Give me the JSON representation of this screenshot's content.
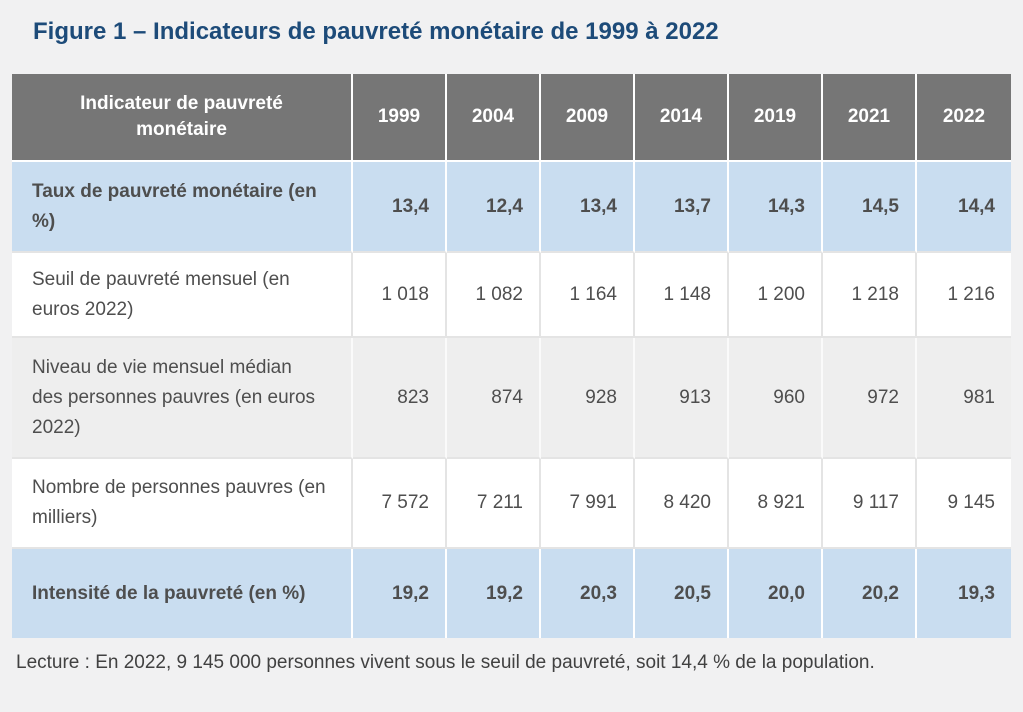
{
  "title": "Figure 1 – Indicateurs de pauvreté monétaire de 1999 à 2022",
  "table": {
    "header_label": "Indicateur de pauvreté monétaire",
    "years": [
      "1999",
      "2004",
      "2009",
      "2014",
      "2019",
      "2021",
      "2022"
    ],
    "rows": [
      {
        "label": "Taux de pauvreté monétaire (en %)",
        "style": "highlight",
        "values": [
          "13,4",
          "12,4",
          "13,4",
          "13,7",
          "14,3",
          "14,5",
          "14,4"
        ]
      },
      {
        "label": "Seuil de pauvreté mensuel (en euros 2022)",
        "style": "plain",
        "values": [
          "1 018",
          "1 082",
          "1 164",
          "1 148",
          "1 200",
          "1 218",
          "1 216"
        ]
      },
      {
        "label": "Niveau de vie mensuel médian des personnes pauvres (en euros 2022)",
        "style": "striped",
        "values": [
          "823",
          "874",
          "928",
          "913",
          "960",
          "972",
          "981"
        ]
      },
      {
        "label": "Nombre de personnes pauvres (en milliers)",
        "style": "plain",
        "values": [
          "7 572",
          "7 211",
          "7 991",
          "8 420",
          "8 921",
          "9 117",
          "9 145"
        ]
      },
      {
        "label": "Intensité de la pauvreté (en %)",
        "style": "highlight",
        "values": [
          "19,2",
          "19,2",
          "20,3",
          "20,5",
          "20,0",
          "20,2",
          "19,3"
        ]
      }
    ]
  },
  "footer": {
    "lecture": "Lecture : En 2022, 9 145 000 personnes vivent sous le seuil de pauvreté, soit 14,4 % de la population."
  },
  "colors": {
    "page_background": "#f1f1f2",
    "title_blue": "#1d4b79",
    "header_gray": "#767676",
    "header_text": "#ffffff",
    "highlight_row_blue": "#c9ddf0",
    "striped_row_gray": "#eeeeee",
    "plain_row_white": "#ffffff",
    "body_text": "#4e4e4e",
    "grid_line": "#e4e4e4"
  },
  "chart_data": {
    "type": "table",
    "title": "Figure 1 – Indicateurs de pauvreté monétaire de 1999 à 2022",
    "columns": [
      "Indicateur de pauvreté monétaire",
      "1999",
      "2004",
      "2009",
      "2014",
      "2019",
      "2021",
      "2022"
    ],
    "rows": [
      {
        "indicator": "Taux de pauvreté monétaire (en %)",
        "values": [
          13.4,
          12.4,
          13.4,
          13.7,
          14.3,
          14.5,
          14.4
        ]
      },
      {
        "indicator": "Seuil de pauvreté mensuel (en euros 2022)",
        "values": [
          1018,
          1082,
          1164,
          1148,
          1200,
          1218,
          1216
        ]
      },
      {
        "indicator": "Niveau de vie mensuel médian des personnes pauvres (en euros 2022)",
        "values": [
          823,
          874,
          928,
          913,
          960,
          972,
          981
        ]
      },
      {
        "indicator": "Nombre de personnes pauvres (en milliers)",
        "values": [
          7572,
          7211,
          7991,
          8420,
          8921,
          9117,
          9145
        ]
      },
      {
        "indicator": "Intensité de la pauvreté (en %)",
        "values": [
          19.2,
          19.2,
          20.3,
          20.5,
          20.0,
          20.2,
          19.3
        ]
      }
    ],
    "note": "Lecture : En 2022, 9 145 000 personnes vivent sous le seuil de pauvreté, soit 14,4 % de la population."
  }
}
